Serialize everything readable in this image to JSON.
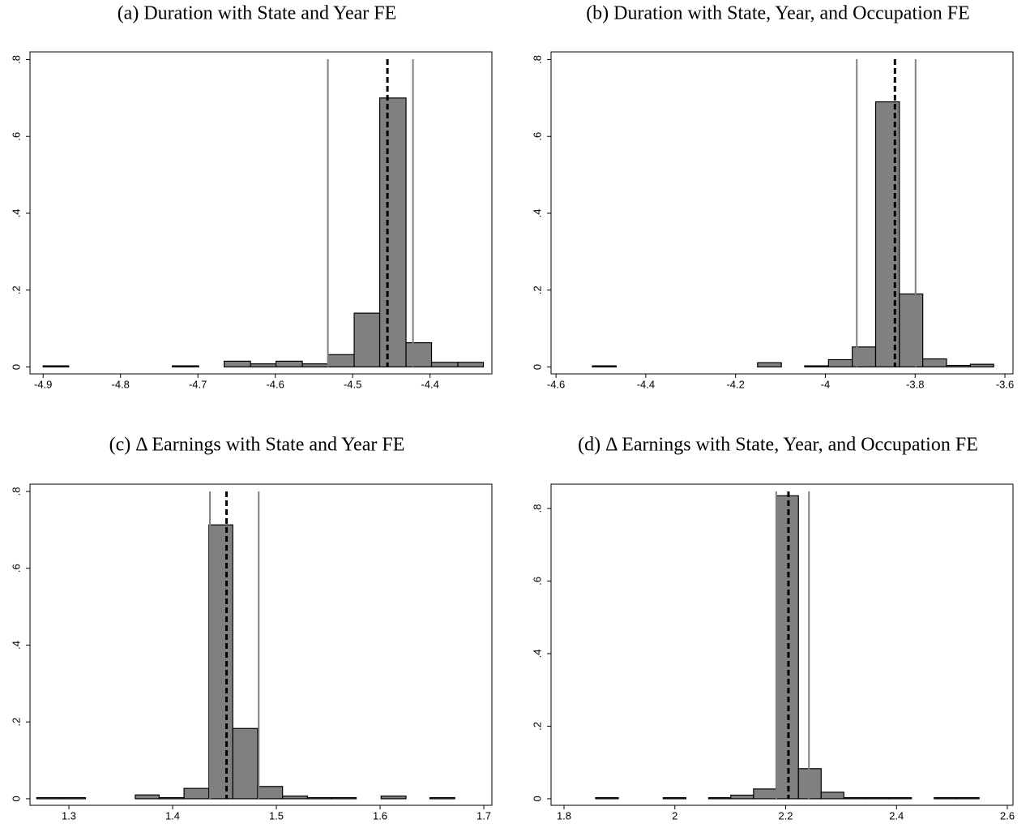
{
  "chart_data": [
    {
      "type": "histogram",
      "title": "(a) Duration with State and Year FE",
      "color": "#808080",
      "bins": [
        -4.9,
        -4.867,
        -4.833,
        -4.8,
        -4.766,
        -4.733,
        -4.699,
        -4.666,
        -4.632,
        -4.599,
        -4.565,
        -4.532,
        -4.498,
        -4.465,
        -4.431,
        -4.398,
        -4.364,
        -4.331
      ],
      "counts": [
        0.003,
        0,
        0,
        0,
        0,
        0.003,
        0,
        0.015,
        0.008,
        0.015,
        0.008,
        0.032,
        0.14,
        0.7,
        0.063,
        0.012,
        0.012
      ],
      "xlim": [
        -4.917,
        -4.32
      ],
      "ylim": [
        -0.018,
        0.82
      ],
      "xticks": [
        -4.9,
        -4.8,
        -4.7,
        -4.6,
        -4.5,
        -4.4
      ],
      "yticks": [
        {
          "value": 0,
          "label": "0"
        },
        {
          "value": 0.2,
          "label": ".2"
        },
        {
          "value": 0.4,
          "label": ".4"
        },
        {
          "value": 0.6,
          "label": ".6"
        },
        {
          "value": 0.8,
          "label": ".8"
        }
      ],
      "vlines": [
        {
          "x": -4.532,
          "style": "solid",
          "color": "#808080"
        },
        {
          "x": -4.422,
          "style": "solid",
          "color": "#808080"
        },
        {
          "x": -4.455,
          "style": "dashed",
          "color": "#000000"
        }
      ]
    },
    {
      "type": "histogram",
      "title": "(b) Duration with State, Year, and Occupation FE",
      "color": "#808080",
      "bins": [
        -4.519,
        -4.466,
        -4.414,
        -4.361,
        -4.309,
        -4.256,
        -4.203,
        -4.151,
        -4.098,
        -4.046,
        -3.993,
        -3.94,
        -3.888,
        -3.835,
        -3.783,
        -3.73,
        -3.677,
        -3.625
      ],
      "counts": [
        0.003,
        0,
        0,
        0,
        0,
        0,
        0,
        0.011,
        0,
        0.003,
        0.019,
        0.052,
        0.69,
        0.19,
        0.021,
        0.004,
        0.007
      ],
      "xlim": [
        -4.611,
        -3.582
      ],
      "ylim": [
        -0.018,
        0.82
      ],
      "xticks": [
        -4.6,
        -4.4,
        -4.2,
        -4,
        -3.8,
        -3.6
      ],
      "yticks": [
        {
          "value": 0,
          "label": "0"
        },
        {
          "value": 0.2,
          "label": ".2"
        },
        {
          "value": 0.4,
          "label": ".4"
        },
        {
          "value": 0.6,
          "label": ".6"
        },
        {
          "value": 0.8,
          "label": ".8"
        }
      ],
      "vlines": [
        {
          "x": -3.93,
          "style": "solid",
          "color": "#808080"
        },
        {
          "x": -3.799,
          "style": "solid",
          "color": "#808080"
        },
        {
          "x": -3.845,
          "style": "dashed",
          "color": "#000000"
        }
      ]
    },
    {
      "type": "histogram",
      "title": "(c) Δ Earnings with State and Year FE",
      "color": "#808080",
      "bins": [
        1.269,
        1.292,
        1.316,
        1.34,
        1.364,
        1.387,
        1.411,
        1.435,
        1.458,
        1.482,
        1.506,
        1.53,
        1.553,
        1.577,
        1.601,
        1.625,
        1.648,
        1.672
      ],
      "counts": [
        0.003,
        0.003,
        0,
        0,
        0.01,
        0.003,
        0.027,
        0.713,
        0.183,
        0.032,
        0.007,
        0.003,
        0.003,
        0,
        0.007,
        0,
        0.003
      ],
      "xlim": [
        1.2625,
        1.7078
      ],
      "ylim": [
        -0.017,
        0.819
      ],
      "xticks": [
        1.3,
        1.4,
        1.5,
        1.6,
        1.7
      ],
      "yticks": [
        {
          "value": 0,
          "label": "0"
        },
        {
          "value": 0.2,
          "label": ".2"
        },
        {
          "value": 0.4,
          "label": ".4"
        },
        {
          "value": 0.6,
          "label": ".6"
        },
        {
          "value": 0.8,
          "label": ".8"
        }
      ],
      "vlines": [
        {
          "x": 1.436,
          "style": "solid",
          "color": "#808080"
        },
        {
          "x": 1.483,
          "style": "solid",
          "color": "#808080"
        },
        {
          "x": 1.452,
          "style": "dashed",
          "color": "#000000"
        }
      ]
    },
    {
      "type": "histogram",
      "title": "(d) Δ Earnings with State, Year, and Occupation FE",
      "color": "#808080",
      "bins": [
        1.857,
        1.898,
        1.938,
        1.979,
        2.02,
        2.061,
        2.101,
        2.142,
        2.183,
        2.223,
        2.264,
        2.305,
        2.345,
        2.386,
        2.427,
        2.468,
        2.508,
        2.549
      ],
      "counts": [
        0.003,
        0,
        0,
        0.003,
        0,
        0.003,
        0.01,
        0.027,
        0.835,
        0.083,
        0.018,
        0.003,
        0.003,
        0.003,
        0,
        0.003,
        0.003
      ],
      "xlim": [
        1.7766,
        2.6102
      ],
      "ylim": [
        -0.018,
        0.867
      ],
      "xticks": [
        1.8,
        2,
        2.2,
        2.4,
        2.6
      ],
      "yticks": [
        {
          "value": 0,
          "label": "0"
        },
        {
          "value": 0.2,
          "label": ".2"
        },
        {
          "value": 0.4,
          "label": ".4"
        },
        {
          "value": 0.6,
          "label": ".6"
        },
        {
          "value": 0.8,
          "label": ".8"
        }
      ],
      "vlines": [
        {
          "x": 2.183,
          "style": "solid",
          "color": "#808080"
        },
        {
          "x": 2.242,
          "style": "solid",
          "color": "#808080"
        },
        {
          "x": 2.205,
          "style": "dashed",
          "color": "#000000"
        }
      ]
    }
  ]
}
